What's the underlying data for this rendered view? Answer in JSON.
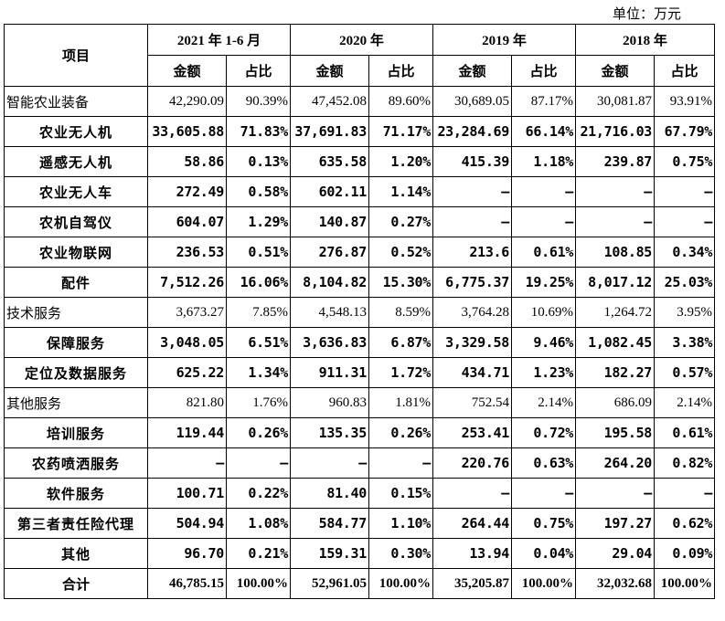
{
  "unit_label": "单位：万元",
  "header": {
    "item": "项目",
    "periods": [
      "2021 年 1-6 月",
      "2020 年",
      "2019 年",
      "2018 年"
    ],
    "amount": "金额",
    "ratio": "占比"
  },
  "rows": [
    {
      "type": "cat",
      "name": "智能农业装备",
      "v": [
        "42,290.09",
        "90.39%",
        "47,452.08",
        "89.60%",
        "30,689.05",
        "87.17%",
        "30,081.87",
        "93.91%"
      ]
    },
    {
      "type": "sub",
      "name": "农业无人机",
      "v": [
        "33,605.88",
        "71.83%",
        "37,691.83",
        "71.17%",
        "23,284.69",
        "66.14%",
        "21,716.03",
        "67.79%"
      ]
    },
    {
      "type": "sub",
      "name": "遥感无人机",
      "v": [
        "58.86",
        "0.13%",
        "635.58",
        "1.20%",
        "415.39",
        "1.18%",
        "239.87",
        "0.75%"
      ]
    },
    {
      "type": "sub",
      "name": "农业无人车",
      "v": [
        "272.49",
        "0.58%",
        "602.11",
        "1.14%",
        "–",
        "–",
        "–",
        "–"
      ]
    },
    {
      "type": "sub",
      "name": "农机自驾仪",
      "v": [
        "604.07",
        "1.29%",
        "140.87",
        "0.27%",
        "–",
        "–",
        "–",
        "–"
      ]
    },
    {
      "type": "sub",
      "name": "农业物联网",
      "v": [
        "236.53",
        "0.51%",
        "276.87",
        "0.52%",
        "213.6",
        "0.61%",
        "108.85",
        "0.34%"
      ]
    },
    {
      "type": "sub",
      "name": "配件",
      "v": [
        "7,512.26",
        "16.06%",
        "8,104.82",
        "15.30%",
        "6,775.37",
        "19.25%",
        "8,017.12",
        "25.03%"
      ]
    },
    {
      "type": "cat",
      "name": "技术服务",
      "v": [
        "3,673.27",
        "7.85%",
        "4,548.13",
        "8.59%",
        "3,764.28",
        "10.69%",
        "1,264.72",
        "3.95%"
      ]
    },
    {
      "type": "sub",
      "name": "保障服务",
      "v": [
        "3,048.05",
        "6.51%",
        "3,636.83",
        "6.87%",
        "3,329.58",
        "9.46%",
        "1,082.45",
        "3.38%"
      ]
    },
    {
      "type": "sub",
      "name": "定位及数据服务",
      "v": [
        "625.22",
        "1.34%",
        "911.31",
        "1.72%",
        "434.71",
        "1.23%",
        "182.27",
        "0.57%"
      ]
    },
    {
      "type": "cat",
      "name": "其他服务",
      "v": [
        "821.80",
        "1.76%",
        "960.83",
        "1.81%",
        "752.54",
        "2.14%",
        "686.09",
        "2.14%"
      ]
    },
    {
      "type": "sub",
      "name": "培训服务",
      "v": [
        "119.44",
        "0.26%",
        "135.35",
        "0.26%",
        "253.41",
        "0.72%",
        "195.58",
        "0.61%"
      ]
    },
    {
      "type": "sub",
      "name": "农药喷洒服务",
      "v": [
        "–",
        "–",
        "–",
        "–",
        "220.76",
        "0.63%",
        "264.20",
        "0.82%"
      ]
    },
    {
      "type": "sub",
      "name": "软件服务",
      "v": [
        "100.71",
        "0.22%",
        "81.40",
        "0.15%",
        "–",
        "–",
        "–",
        "–"
      ]
    },
    {
      "type": "sub",
      "name": "第三者责任险代理",
      "v": [
        "504.94",
        "1.08%",
        "584.77",
        "1.10%",
        "264.44",
        "0.75%",
        "197.27",
        "0.62%"
      ]
    },
    {
      "type": "sub",
      "name": "其他",
      "v": [
        "96.70",
        "0.21%",
        "159.31",
        "0.30%",
        "13.94",
        "0.04%",
        "29.04",
        "0.09%"
      ]
    },
    {
      "type": "total",
      "name": "合计",
      "v": [
        "46,785.15",
        "100.00%",
        "52,961.05",
        "100.00%",
        "35,205.87",
        "100.00%",
        "32,032.68",
        "100.00%"
      ]
    }
  ]
}
